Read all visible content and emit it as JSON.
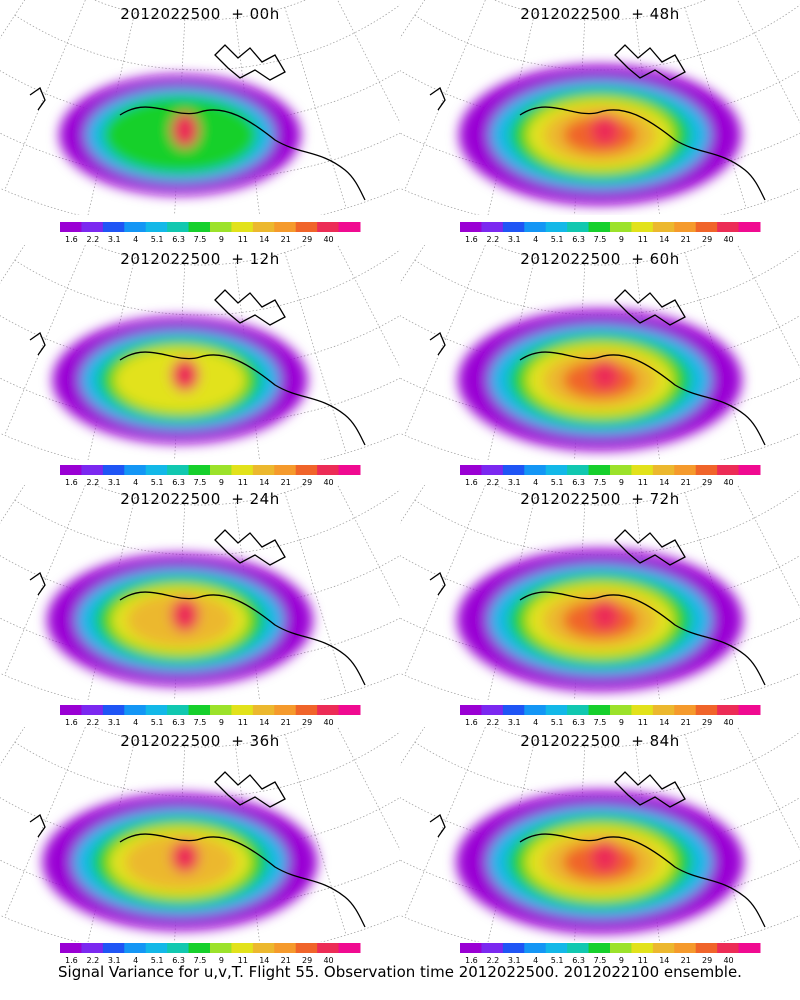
{
  "footer": "Signal Variance for u,v,T. Flight 55. Observation time 2012022500. 2012022100 ensemble.",
  "colorbar": {
    "labels": [
      "1.6",
      "2.2",
      "3.1",
      "4",
      "5.1",
      "6.3",
      "7.5",
      "9",
      "11",
      "14",
      "21",
      "29",
      "40"
    ],
    "colors": [
      "#9a00d4",
      "#7b28f0",
      "#1f55f5",
      "#1496f5",
      "#13b8e8",
      "#11c8b0",
      "#16d02c",
      "#9ce22a",
      "#e2e21b",
      "#ecb82e",
      "#f59a2c",
      "#f0642a",
      "#ec2c56",
      "#f00a90"
    ]
  },
  "panels": [
    {
      "title": "2012022500  + 00h",
      "intensity": 0.35,
      "peak": 1.0
    },
    {
      "title": "2012022500  + 48h",
      "intensity": 0.8,
      "peak": 0.88
    },
    {
      "title": "2012022500  + 12h",
      "intensity": 0.5,
      "peak": 0.9
    },
    {
      "title": "2012022500  + 60h",
      "intensity": 0.82,
      "peak": 0.86
    },
    {
      "title": "2012022500  + 24h",
      "intensity": 0.62,
      "peak": 0.92
    },
    {
      "title": "2012022500  + 72h",
      "intensity": 0.84,
      "peak": 0.88
    },
    {
      "title": "2012022500  + 36h",
      "intensity": 0.72,
      "peak": 0.86
    },
    {
      "title": "2012022500  + 84h",
      "intensity": 0.86,
      "peak": 0.9
    }
  ]
}
